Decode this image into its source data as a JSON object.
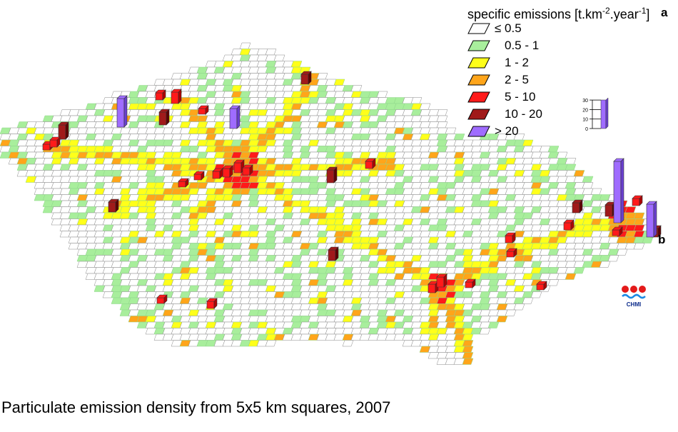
{
  "legend": {
    "title_main": "specific emissions [t.km",
    "title_sup1": "-2",
    "title_mid": ".year",
    "title_sup2": "-1",
    "title_end": "]",
    "items": [
      {
        "label": "≤ 0.5",
        "color": "#ffffff"
      },
      {
        "label": "0.5 - 1",
        "color": "#a8ee9c"
      },
      {
        "label": "1 - 2",
        "color": "#ffff1a"
      },
      {
        "label": "2 - 5",
        "color": "#ffa51a"
      },
      {
        "label": "5 - 10",
        "color": "#ff1a1a"
      },
      {
        "label": "10 - 20",
        "color": "#a01a1a"
      },
      {
        "label": "> 20",
        "color": "#9f6cff"
      }
    ]
  },
  "scale_bar": {
    "ticks": [
      "30",
      "20",
      "10",
      "0"
    ]
  },
  "panel_labels": {
    "a": "a",
    "b": "b"
  },
  "logo": {
    "text": "CHMI"
  },
  "caption": "Particulate emission density from 5x5 km squares, 2007"
}
